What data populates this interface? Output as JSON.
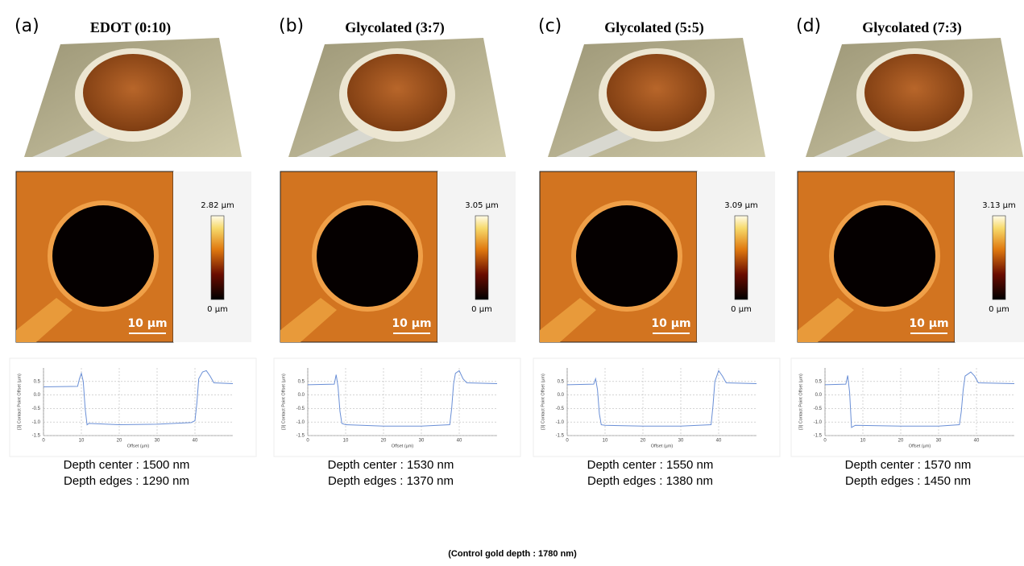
{
  "panels": [
    {
      "label": "(a)",
      "title": "EDOT (0:10)",
      "colorbar_max": "2.82 µm",
      "colorbar_min": "0 µm",
      "scale_bar": "10 µm",
      "depth_center": "Depth center : 1500 nm",
      "depth_edges": "Depth edges : 1290 nm"
    },
    {
      "label": "(b)",
      "title": "Glycolated (3:7)",
      "colorbar_max": "3.05 µm",
      "colorbar_min": "0 µm",
      "scale_bar": "10 µm",
      "depth_center": "Depth center : 1530 nm",
      "depth_edges": "Depth edges : 1370 nm"
    },
    {
      "label": "(c)",
      "title": "Glycolated (5:5)",
      "colorbar_max": "3.09 µm",
      "colorbar_min": "0 µm",
      "scale_bar": "10 µm",
      "depth_center": "Depth center : 1550 nm",
      "depth_edges": "Depth edges : 1380 nm"
    },
    {
      "label": "(d)",
      "title": "Glycolated (7:3)",
      "colorbar_max": "3.13 µm",
      "colorbar_min": "0 µm",
      "scale_bar": "10 µm",
      "depth_center": "Depth center : 1570 nm",
      "depth_edges": "Depth edges : 1450 nm"
    }
  ],
  "chart_data": [
    {
      "type": "line",
      "xlabel": "Offset (µm)",
      "ylabel": "[3] Contact Point Offset (µm)",
      "color": "#6a8fd6",
      "grid": true,
      "xlim": [
        0,
        50
      ],
      "ylim": [
        -1.5,
        1.0
      ],
      "xticks": [
        0,
        10,
        20,
        30,
        40
      ],
      "yticks": [
        0.5,
        {
          "value": 0,
          "label": "0.0"
        },
        -0.5,
        {
          "value": -1,
          "label": "-1.0"
        },
        -1.5
      ],
      "x": [
        0,
        9,
        9.5,
        10,
        10.5,
        11,
        11.5,
        12,
        20,
        30,
        39,
        40,
        40.5,
        41,
        42,
        43,
        44,
        45,
        50
      ],
      "values": [
        0.3,
        0.32,
        0.6,
        0.8,
        0.5,
        -0.5,
        -1.1,
        -1.05,
        -1.1,
        -1.08,
        -1.02,
        -0.95,
        -0.3,
        0.6,
        0.85,
        0.9,
        0.7,
        0.45,
        0.42
      ]
    },
    {
      "type": "line",
      "xlabel": "Offset (µm)",
      "ylabel": "[3] Contact Point Offset (µm)",
      "color": "#6a8fd6",
      "grid": true,
      "xlim": [
        0,
        50
      ],
      "ylim": [
        -1.5,
        1.0
      ],
      "xticks": [
        0,
        10,
        20,
        30,
        40
      ],
      "yticks": [
        0.5,
        {
          "value": 0,
          "label": "0.0"
        },
        -0.5,
        {
          "value": -1,
          "label": "-1.0"
        },
        -1.5
      ],
      "x": [
        0,
        7,
        7.5,
        8,
        8.5,
        9,
        10,
        20,
        30,
        37.5,
        38,
        38.5,
        39,
        40,
        41,
        42,
        50
      ],
      "values": [
        0.38,
        0.4,
        0.75,
        0.3,
        -0.6,
        -1.05,
        -1.1,
        -1.15,
        -1.15,
        -1.1,
        -0.5,
        0.4,
        0.8,
        0.9,
        0.6,
        0.45,
        0.42
      ]
    },
    {
      "type": "line",
      "xlabel": "Offset (µm)",
      "ylabel": "[3] Contact Point Offset (µm)",
      "color": "#6a8fd6",
      "grid": true,
      "xlim": [
        0,
        50
      ],
      "ylim": [
        -1.5,
        1.0
      ],
      "xticks": [
        0,
        10,
        20,
        30,
        40
      ],
      "yticks": [
        0.5,
        {
          "value": 0,
          "label": "0.0"
        },
        -0.5,
        {
          "value": -1,
          "label": "-1.0"
        },
        -1.5
      ],
      "x": [
        0,
        7,
        7.5,
        8,
        8.5,
        9,
        10,
        20,
        30,
        38,
        38.5,
        39,
        40,
        41,
        42,
        50
      ],
      "values": [
        0.38,
        0.4,
        0.6,
        0.2,
        -0.7,
        -1.1,
        -1.12,
        -1.15,
        -1.15,
        -1.1,
        -0.4,
        0.5,
        0.9,
        0.7,
        0.45,
        0.42
      ]
    },
    {
      "type": "line",
      "xlabel": "Offset (µm)",
      "ylabel": "[3] Contact Point Offset (µm)",
      "color": "#6a8fd6",
      "grid": true,
      "xlim": [
        0,
        50
      ],
      "ylim": [
        -1.5,
        1.0
      ],
      "xticks": [
        0,
        10,
        20,
        30,
        40
      ],
      "yticks": [
        0.5,
        {
          "value": 0,
          "label": "0.0"
        },
        -0.5,
        {
          "value": -1,
          "label": "-1.0"
        },
        -1.5
      ],
      "x": [
        0,
        5.5,
        6,
        6.5,
        7,
        8,
        20,
        30,
        35.5,
        36,
        36.5,
        37,
        38.5,
        39.5,
        40.5,
        50
      ],
      "values": [
        0.38,
        0.4,
        0.72,
        0.1,
        -1.2,
        -1.12,
        -1.15,
        -1.15,
        -1.1,
        -0.6,
        0.2,
        0.7,
        0.85,
        0.7,
        0.45,
        0.42
      ]
    }
  ],
  "footnote": "(Control gold depth : 1780 nm)"
}
